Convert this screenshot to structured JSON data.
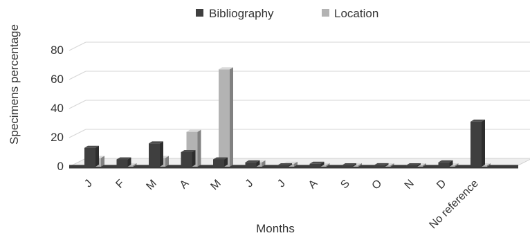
{
  "chart_data": {
    "type": "bar",
    "title": "",
    "xlabel": "Months",
    "ylabel": "Specimens percentage",
    "categories": [
      "J",
      "F",
      "M",
      "A",
      "M",
      "J",
      "J",
      "A",
      "S",
      "O",
      "N",
      "D",
      "No reference"
    ],
    "series": [
      {
        "name": "Bibliography",
        "color": "#3f3f3f",
        "values": [
          13,
          5,
          16,
          10,
          5,
          3,
          0,
          2,
          0,
          1,
          0,
          3,
          31
        ]
      },
      {
        "name": "Location",
        "color": "#b3b3b3",
        "values": [
          6,
          1,
          6,
          24,
          67,
          3,
          2,
          1,
          1,
          0,
          0,
          0,
          0
        ]
      }
    ],
    "ylim": [
      0,
      80
    ],
    "yticks": [
      0,
      20,
      40,
      60,
      80
    ],
    "grid": true,
    "legend_position": "top",
    "chart_style": "3d-clustered"
  }
}
